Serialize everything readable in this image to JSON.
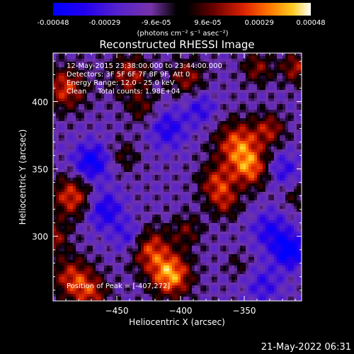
{
  "chart_data": {
    "type": "heatmap",
    "title": "Reconstructed RHESSI Image",
    "xlabel": "Heliocentric X (arcsec)",
    "ylabel": "Heliocentric Y (arcsec)",
    "x_ticks": [
      -450,
      -400,
      -350
    ],
    "y_ticks": [
      300,
      350,
      400
    ],
    "xlim": [
      -500,
      -305
    ],
    "ylim": [
      252,
      436
    ],
    "colorbar": {
      "ticks": [
        "-0.00048",
        "-0.00029",
        "-9.6e-05",
        "9.6e-05",
        "0.00029",
        "0.00048"
      ],
      "range": [
        -0.00048,
        0.00048
      ],
      "unit_label": "(photons cm⁻² s⁻¹ asec⁻²)"
    },
    "colors": [
      "#000000",
      "#0000cc",
      "#3311dd",
      "#5522bb",
      "#7733aa",
      "#220000",
      "#8b0000",
      "#dd2200",
      "#ff6600",
      "#ffbb00",
      "#ffff88",
      "#ffffff"
    ],
    "annotations": [
      "12-May-2015 23:38:00.000 to 23:44:00.000",
      "Detectors: 3F 5F 6F 7F 8F 9F, Att 0",
      "Energy Range: 12.0 - 25.0 keV",
      "Clean     Total counts: 1.98E+04"
    ],
    "peak_label": "Position of Peak = [-407,272]",
    "blobs": [
      {
        "x": -408,
        "y": 272,
        "v": 0.00048,
        "r": 16
      },
      {
        "x": -425,
        "y": 292,
        "v": 0.00034,
        "r": 16
      },
      {
        "x": -395,
        "y": 305,
        "v": 0.0002,
        "r": 12
      },
      {
        "x": -355,
        "y": 368,
        "v": 0.0004,
        "r": 18
      },
      {
        "x": -345,
        "y": 350,
        "v": 0.00033,
        "r": 14
      },
      {
        "x": -372,
        "y": 340,
        "v": 0.0003,
        "r": 14
      },
      {
        "x": -330,
        "y": 380,
        "v": 0.00026,
        "r": 12
      },
      {
        "x": -365,
        "y": 325,
        "v": 0.00022,
        "r": 12
      },
      {
        "x": -485,
        "y": 330,
        "v": 0.00036,
        "r": 16
      },
      {
        "x": -485,
        "y": 270,
        "v": 0.00032,
        "r": 16
      },
      {
        "x": -470,
        "y": 258,
        "v": 0.00026,
        "r": 14
      },
      {
        "x": -500,
        "y": 300,
        "v": 0.00026,
        "r": 12
      },
      {
        "x": -490,
        "y": 410,
        "v": 0.00034,
        "r": 16
      },
      {
        "x": -440,
        "y": 420,
        "v": 0.00028,
        "r": 16
      },
      {
        "x": -395,
        "y": 418,
        "v": 0.00026,
        "r": 14
      },
      {
        "x": -340,
        "y": 425,
        "v": 0.00024,
        "r": 12
      },
      {
        "x": -430,
        "y": 395,
        "v": 0.00018,
        "r": 12
      },
      {
        "x": -445,
        "y": 360,
        "v": 0.00016,
        "r": 12
      },
      {
        "x": -310,
        "y": 425,
        "v": 0.00028,
        "r": 12
      },
      {
        "x": -310,
        "y": 330,
        "v": 0.00014,
        "r": 10
      },
      {
        "x": -355,
        "y": 280,
        "v": 0.00012,
        "r": 10
      },
      {
        "x": -460,
        "y": 320,
        "v": -0.00028,
        "r": 14
      },
      {
        "x": -470,
        "y": 355,
        "v": -0.00034,
        "r": 14
      },
      {
        "x": -410,
        "y": 380,
        "v": -0.00024,
        "r": 14
      },
      {
        "x": -315,
        "y": 290,
        "v": -0.0004,
        "r": 12
      },
      {
        "x": -330,
        "y": 305,
        "v": -0.00024,
        "r": 14
      },
      {
        "x": -385,
        "y": 395,
        "v": -0.0002,
        "r": 12
      },
      {
        "x": -335,
        "y": 265,
        "v": -0.00018,
        "r": 14
      },
      {
        "x": -440,
        "y": 300,
        "v": -0.00022,
        "r": 12
      },
      {
        "x": -320,
        "y": 350,
        "v": -0.0002,
        "r": 12
      }
    ]
  },
  "footer": {
    "timestamp": "21-May-2022 06:31"
  }
}
